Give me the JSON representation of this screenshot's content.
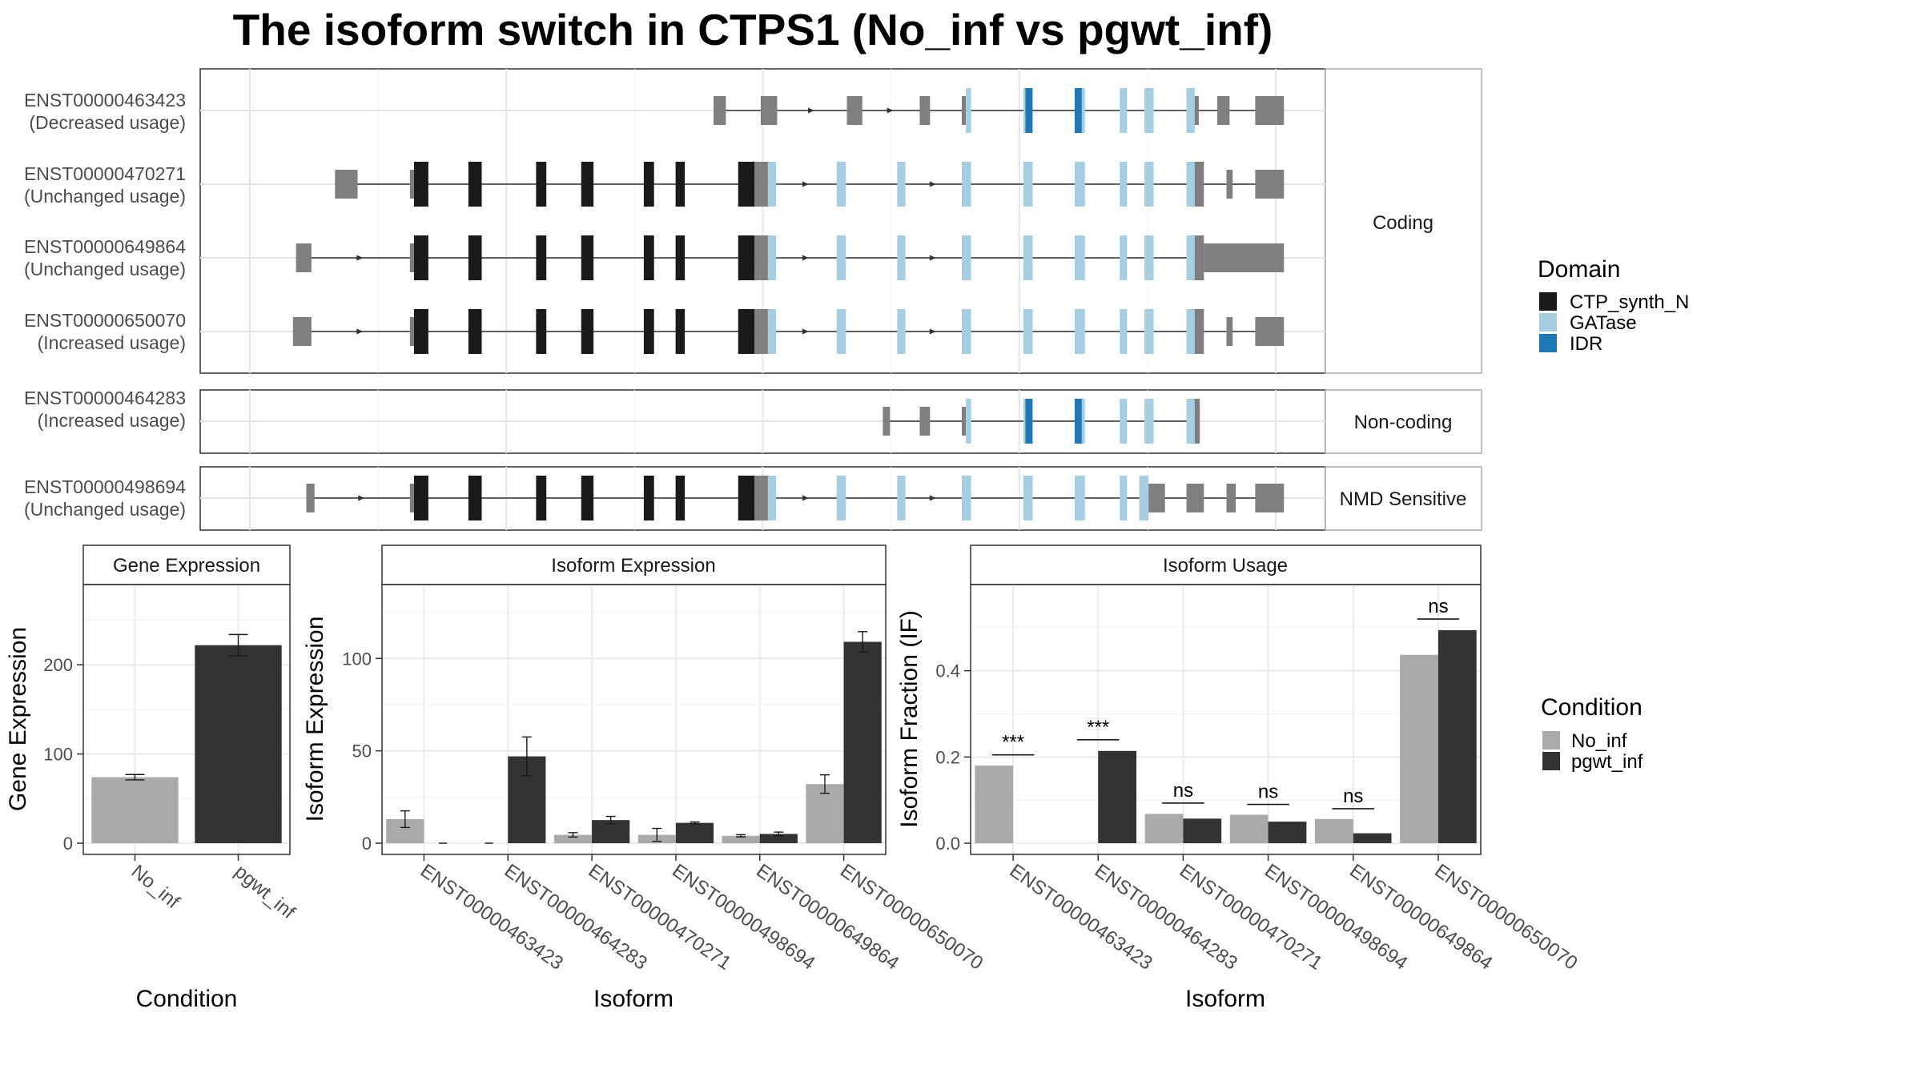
{
  "title": "The isoform switch in CTPS1 (No_inf vs pgwt_inf)",
  "colors": {
    "CTP_synth_N": "#1a1a1a",
    "GATase": "#a6cee3",
    "IDR": "#1f78b4",
    "utr": "#7f7f7f",
    "No_inf": "#aaaaaa",
    "pgwt_inf": "#333333"
  },
  "structure": {
    "xlim": [
      0,
      1000
    ],
    "panels": [
      {
        "label": "Coding",
        "rows": [
          {
            "id": "ENST00000463423",
            "usage": "(Decreased usage)",
            "segments": [
              [
                452,
                464,
                "utr",
                "s"
              ],
              [
                498,
                514,
                "utr",
                "s"
              ],
              [
                582,
                597,
                "utr",
                "s"
              ],
              [
                653,
                663,
                "utr",
                "s"
              ],
              [
                694,
                698,
                "utr",
                "s"
              ],
              [
                698,
                703,
                "GATase",
                "l"
              ],
              [
                754,
                756,
                "GATase",
                "l"
              ],
              [
                756,
                763,
                "IDR",
                "l"
              ],
              [
                804,
                811,
                "IDR",
                "l"
              ],
              [
                811,
                814,
                "GATase",
                "l"
              ],
              [
                848,
                855,
                "GATase",
                "l"
              ],
              [
                872,
                881,
                "GATase",
                "l"
              ],
              [
                913,
                921,
                "GATase",
                "l"
              ],
              [
                921,
                925,
                "utr",
                "s"
              ],
              [
                943,
                952,
                "utr",
                "s"
              ],
              [
                952,
                955,
                "utr",
                "s"
              ],
              [
                980,
                1008,
                "utr",
                "s"
              ]
            ]
          },
          {
            "id": "ENST00000470271",
            "usage": "(Unchanged usage)",
            "segments": [
              [
                83,
                105,
                "utr",
                "s"
              ],
              [
                156,
                160,
                "utr",
                "s"
              ],
              [
                160,
                174,
                "CTP_synth_N",
                "l"
              ],
              [
                213,
                226,
                "CTP_synth_N",
                "l"
              ],
              [
                279,
                289,
                "CTP_synth_N",
                "l"
              ],
              [
                323,
                335,
                "CTP_synth_N",
                "l"
              ],
              [
                384,
                394,
                "CTP_synth_N",
                "l"
              ],
              [
                415,
                424,
                "CTP_synth_N",
                "l"
              ],
              [
                476,
                492,
                "CTP_synth_N",
                "l"
              ],
              [
                492,
                498,
                "utr",
                "l"
              ],
              [
                498,
                505,
                "utr",
                "l"
              ],
              [
                505,
                513,
                "GATase",
                "l"
              ],
              [
                572,
                581,
                "GATase",
                "l"
              ],
              [
                631,
                639,
                "GATase",
                "l"
              ],
              [
                694,
                703,
                "GATase",
                "l"
              ],
              [
                754,
                763,
                "GATase",
                "l"
              ],
              [
                804,
                814,
                "GATase",
                "l"
              ],
              [
                848,
                855,
                "GATase",
                "l"
              ],
              [
                872,
                881,
                "GATase",
                "l"
              ],
              [
                913,
                921,
                "GATase",
                "l"
              ],
              [
                921,
                930,
                "utr",
                "l"
              ],
              [
                952,
                958,
                "utr",
                "s"
              ],
              [
                980,
                1008,
                "utr",
                "s"
              ]
            ]
          },
          {
            "id": "ENST00000649864",
            "usage": "(Unchanged usage)",
            "segments": [
              [
                45,
                60,
                "utr",
                "s"
              ],
              [
                156,
                160,
                "utr",
                "s"
              ],
              [
                160,
                174,
                "CTP_synth_N",
                "l"
              ],
              [
                213,
                226,
                "CTP_synth_N",
                "l"
              ],
              [
                279,
                289,
                "CTP_synth_N",
                "l"
              ],
              [
                323,
                335,
                "CTP_synth_N",
                "l"
              ],
              [
                384,
                394,
                "CTP_synth_N",
                "l"
              ],
              [
                415,
                424,
                "CTP_synth_N",
                "l"
              ],
              [
                476,
                492,
                "CTP_synth_N",
                "l"
              ],
              [
                492,
                498,
                "utr",
                "l"
              ],
              [
                498,
                505,
                "utr",
                "l"
              ],
              [
                505,
                513,
                "GATase",
                "l"
              ],
              [
                572,
                581,
                "GATase",
                "l"
              ],
              [
                631,
                639,
                "GATase",
                "l"
              ],
              [
                694,
                703,
                "GATase",
                "l"
              ],
              [
                754,
                763,
                "GATase",
                "l"
              ],
              [
                804,
                814,
                "GATase",
                "l"
              ],
              [
                848,
                855,
                "GATase",
                "l"
              ],
              [
                872,
                881,
                "GATase",
                "l"
              ],
              [
                913,
                921,
                "GATase",
                "l"
              ],
              [
                921,
                930,
                "utr",
                "l"
              ],
              [
                930,
                1008,
                "utr",
                "s"
              ]
            ]
          },
          {
            "id": "ENST00000650070",
            "usage": "(Increased usage)",
            "segments": [
              [
                42,
                60,
                "utr",
                "s"
              ],
              [
                156,
                160,
                "utr",
                "s"
              ],
              [
                160,
                174,
                "CTP_synth_N",
                "l"
              ],
              [
                213,
                226,
                "CTP_synth_N",
                "l"
              ],
              [
                279,
                289,
                "CTP_synth_N",
                "l"
              ],
              [
                323,
                335,
                "CTP_synth_N",
                "l"
              ],
              [
                384,
                394,
                "CTP_synth_N",
                "l"
              ],
              [
                415,
                424,
                "CTP_synth_N",
                "l"
              ],
              [
                476,
                492,
                "CTP_synth_N",
                "l"
              ],
              [
                492,
                498,
                "utr",
                "l"
              ],
              [
                498,
                505,
                "utr",
                "l"
              ],
              [
                505,
                513,
                "GATase",
                "l"
              ],
              [
                572,
                581,
                "GATase",
                "l"
              ],
              [
                631,
                639,
                "GATase",
                "l"
              ],
              [
                694,
                703,
                "GATase",
                "l"
              ],
              [
                754,
                763,
                "GATase",
                "l"
              ],
              [
                804,
                814,
                "GATase",
                "l"
              ],
              [
                848,
                855,
                "GATase",
                "l"
              ],
              [
                872,
                881,
                "GATase",
                "l"
              ],
              [
                913,
                921,
                "GATase",
                "l"
              ],
              [
                921,
                930,
                "utr",
                "l"
              ],
              [
                952,
                958,
                "utr",
                "s"
              ],
              [
                980,
                1008,
                "utr",
                "s"
              ]
            ]
          }
        ]
      },
      {
        "label": "Non-coding",
        "rows": [
          {
            "id": "ENST00000464283",
            "usage": "(Increased usage)",
            "segments": [
              [
                617,
                624,
                "utr",
                "s"
              ],
              [
                653,
                663,
                "utr",
                "s"
              ],
              [
                694,
                698,
                "utr",
                "s"
              ],
              [
                698,
                703,
                "GATase",
                "l"
              ],
              [
                754,
                756,
                "GATase",
                "l"
              ],
              [
                756,
                763,
                "IDR",
                "l"
              ],
              [
                804,
                811,
                "IDR",
                "l"
              ],
              [
                811,
                814,
                "GATase",
                "l"
              ],
              [
                848,
                855,
                "GATase",
                "l"
              ],
              [
                872,
                881,
                "GATase",
                "l"
              ],
              [
                913,
                921,
                "GATase",
                "l"
              ],
              [
                921,
                926,
                "utr",
                "l"
              ]
            ]
          }
        ]
      },
      {
        "label": "NMD Sensitive",
        "rows": [
          {
            "id": "ENST00000498694",
            "usage": "(Unchanged usage)",
            "segments": [
              [
                55,
                63,
                "utr",
                "s"
              ],
              [
                156,
                160,
                "utr",
                "s"
              ],
              [
                160,
                174,
                "CTP_synth_N",
                "l"
              ],
              [
                213,
                226,
                "CTP_synth_N",
                "l"
              ],
              [
                279,
                289,
                "CTP_synth_N",
                "l"
              ],
              [
                323,
                335,
                "CTP_synth_N",
                "l"
              ],
              [
                384,
                394,
                "CTP_synth_N",
                "l"
              ],
              [
                415,
                424,
                "CTP_synth_N",
                "l"
              ],
              [
                476,
                492,
                "CTP_synth_N",
                "l"
              ],
              [
                492,
                498,
                "utr",
                "l"
              ],
              [
                498,
                505,
                "utr",
                "l"
              ],
              [
                505,
                513,
                "GATase",
                "l"
              ],
              [
                572,
                581,
                "GATase",
                "l"
              ],
              [
                631,
                639,
                "GATase",
                "l"
              ],
              [
                694,
                703,
                "GATase",
                "l"
              ],
              [
                754,
                763,
                "GATase",
                "l"
              ],
              [
                804,
                814,
                "GATase",
                "l"
              ],
              [
                848,
                855,
                "GATase",
                "l"
              ],
              [
                867,
                876,
                "GATase",
                "l"
              ],
              [
                876,
                892,
                "utr",
                "s"
              ],
              [
                913,
                930,
                "utr",
                "s"
              ],
              [
                952,
                961,
                "utr",
                "s"
              ],
              [
                980,
                1008,
                "utr",
                "s"
              ]
            ]
          }
        ]
      }
    ]
  },
  "legends": {
    "domain": {
      "title": "Domain",
      "items": [
        "CTP_synth_N",
        "GATase",
        "IDR"
      ]
    },
    "condition": {
      "title": "Condition",
      "items": [
        "No_inf",
        "pgwt_inf"
      ]
    }
  },
  "chart_data": [
    {
      "type": "bar",
      "title": "Gene Expression",
      "xlabel": "Condition",
      "ylabel": "Gene Expression",
      "categories": [
        "No_inf",
        "pgwt_inf"
      ],
      "values": [
        74,
        222
      ],
      "errors": [
        3,
        12
      ],
      "ylim": [
        0,
        290
      ],
      "yticks": [
        0,
        100,
        200
      ]
    },
    {
      "type": "bar",
      "title": "Isoform Expression",
      "xlabel": "Isoform",
      "ylabel": "Isoform Expression",
      "categories": [
        "ENST00000463423",
        "ENST00000464283",
        "ENST00000470271",
        "ENST00000498694",
        "ENST00000649864",
        "ENST00000650070"
      ],
      "series": [
        {
          "name": "No_inf",
          "values": [
            13,
            0,
            4.5,
            4.5,
            4,
            32
          ],
          "errors": [
            4.5,
            0,
            1.2,
            3.5,
            0.6,
            5
          ]
        },
        {
          "name": "pgwt_inf",
          "values": [
            0,
            47,
            12.5,
            11,
            5,
            109
          ],
          "errors": [
            0,
            10.5,
            2,
            0.5,
            1,
            5.5
          ]
        }
      ],
      "ylim": [
        0,
        140
      ],
      "yticks": [
        0,
        50,
        100
      ]
    },
    {
      "type": "bar",
      "title": "Isoform Usage",
      "xlabel": "Isoform",
      "ylabel": "Isoform Fraction (IF)",
      "categories": [
        "ENST00000463423",
        "ENST00000464283",
        "ENST00000470271",
        "ENST00000498694",
        "ENST00000649864",
        "ENST00000650070"
      ],
      "series": [
        {
          "name": "No_inf",
          "values": [
            0.18,
            0,
            0.068,
            0.066,
            0.056,
            0.437
          ]
        },
        {
          "name": "pgwt_inf",
          "values": [
            0,
            0.214,
            0.057,
            0.05,
            0.023,
            0.494
          ]
        }
      ],
      "significance": [
        "***",
        "***",
        "ns",
        "ns",
        "ns",
        "ns"
      ],
      "significance_y": [
        0.205,
        0.24,
        0.093,
        0.09,
        0.08,
        0.52
      ],
      "ylim": [
        0,
        0.6
      ],
      "yticks": [
        0.0,
        0.2,
        0.4
      ],
      "ytick_labels": [
        "0.0",
        "0.2",
        "0.4"
      ]
    }
  ]
}
